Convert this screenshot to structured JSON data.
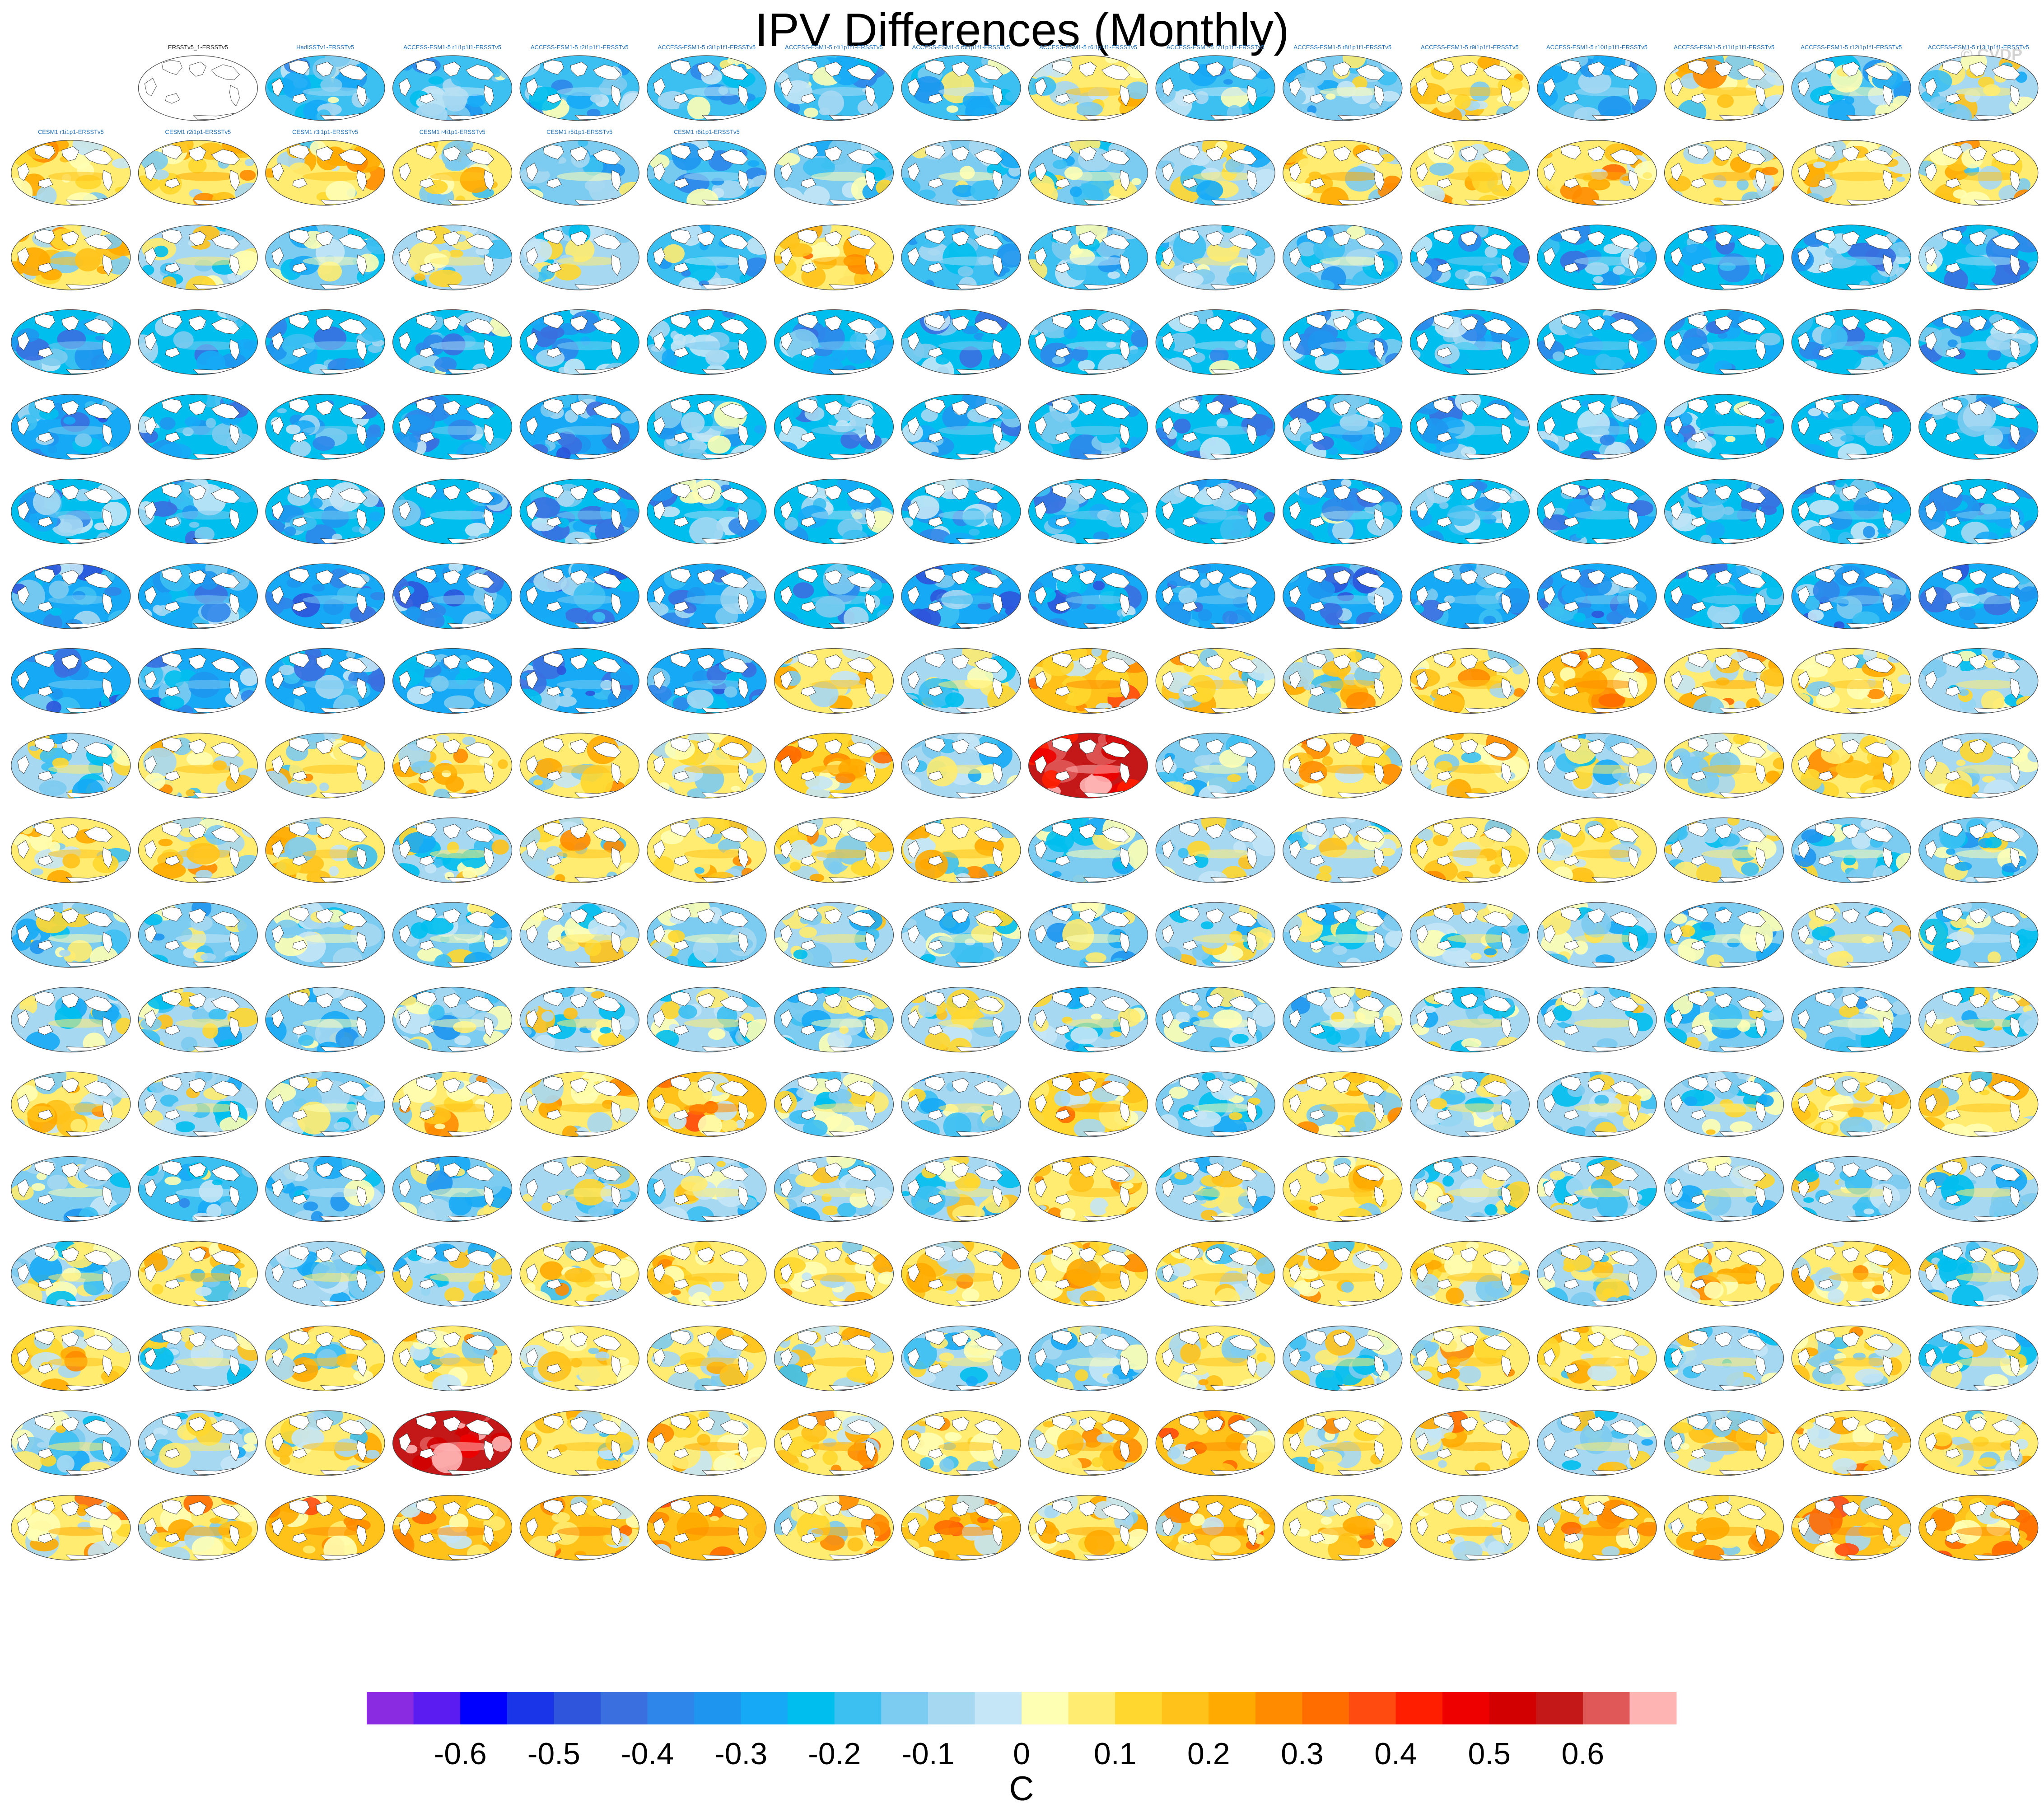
{
  "title": "IPV Differences (Monthly)",
  "watermark": "© CVDP",
  "chart_data": {
    "type": "heatmap",
    "title": "IPV Differences (Monthly)",
    "grid": {
      "rows": 18,
      "cols": 16
    },
    "first_row_offset": 1,
    "panel_labels": [
      "ERSSTv5_1-ERSSTv5",
      "HadISSTv1-ERSSTv5",
      "ACCESS-ESM1-5 r1i1p1f1-ERSSTv5",
      "ACCESS-ESM1-5 r2i1p1f1-ERSSTv5",
      "ACCESS-ESM1-5 r3i1p1f1-ERSSTv5",
      "ACCESS-ESM1-5 r4i1p1f1-ERSSTv5",
      "ACCESS-ESM1-5 r5i1p1f1-ERSSTv5",
      "ACCESS-ESM1-5 r6i1p1f1-ERSSTv5",
      "ACCESS-ESM1-5 r7i1p1f1-ERSSTv5",
      "ACCESS-ESM1-5 r8i1p1f1-ERSSTv5",
      "ACCESS-ESM1-5 r9i1p1f1-ERSSTv5",
      "ACCESS-ESM1-5 r10i1p1f1-ERSSTv5",
      "ACCESS-ESM1-5 r11i1p1f1-ERSSTv5",
      "ACCESS-ESM1-5 r12i1p1f1-ERSSTv5",
      "ACCESS-ESM1-5 r13i1p1f1-ERSSTv5",
      "CESM1 r1i1p1-ERSSTv5",
      "CESM1 r2i1p1-ERSSTv5",
      "CESM1 r3i1p1-ERSSTv5",
      "CESM1 r4i1p1-ERSSTv5",
      "CESM1 r5i1p1-ERSSTv5",
      "CESM1 r6i1p1-ERSSTv5"
    ],
    "label_groups": [
      {
        "from_row": 0,
        "from_col": 0,
        "color": "#222222"
      },
      {
        "from_row": 0,
        "from_col": 2,
        "color": "#1f6fb8"
      },
      {
        "from_row": 3,
        "from_col": 12,
        "color": "#7aa48a"
      },
      {
        "from_row": 7,
        "from_col": 6,
        "color": "#c0392b"
      },
      {
        "from_row": 10,
        "from_col": 5,
        "color": "#9a6fd6"
      },
      {
        "from_row": 16,
        "from_col": 2,
        "color": "#c9b27a"
      }
    ],
    "panel_mean": [
      [
        null,
        null,
        -0.18,
        -0.15,
        -0.18,
        -0.15,
        -0.18,
        -0.15,
        0.05,
        -0.15,
        -0.1,
        0.05,
        -0.18,
        0.05,
        -0.1,
        -0.05
      ],
      [
        0.05,
        0.1,
        0.05,
        0.05,
        -0.1,
        -0.18,
        -0.1,
        -0.1,
        -0.1,
        -0.05,
        0.1,
        0.05,
        0.1,
        0.1,
        0.05,
        0.05
      ],
      [
        0.05,
        -0.05,
        -0.1,
        -0.05,
        -0.05,
        -0.15,
        0.1,
        -0.18,
        -0.15,
        -0.05,
        -0.1,
        -0.22,
        -0.2,
        -0.22,
        -0.22,
        -0.2
      ],
      [
        -0.22,
        -0.22,
        -0.22,
        -0.2,
        -0.22,
        -0.22,
        -0.22,
        -0.22,
        -0.2,
        -0.2,
        -0.22,
        -0.2,
        -0.22,
        -0.22,
        -0.22,
        -0.2
      ],
      [
        -0.25,
        -0.22,
        -0.22,
        -0.22,
        -0.25,
        -0.2,
        -0.22,
        -0.22,
        -0.22,
        -0.22,
        -0.22,
        -0.22,
        -0.22,
        -0.2,
        -0.22,
        -0.22
      ],
      [
        -0.22,
        -0.22,
        -0.22,
        -0.2,
        -0.22,
        -0.2,
        -0.2,
        -0.2,
        -0.22,
        -0.22,
        -0.2,
        -0.22,
        -0.22,
        -0.22,
        -0.22,
        -0.22
      ],
      [
        -0.25,
        -0.25,
        -0.25,
        -0.25,
        -0.25,
        -0.25,
        -0.22,
        -0.28,
        -0.25,
        -0.25,
        -0.25,
        -0.25,
        -0.25,
        -0.22,
        -0.25,
        -0.25
      ],
      [
        -0.25,
        -0.25,
        -0.25,
        -0.25,
        -0.25,
        -0.25,
        0.05,
        -0.05,
        0.15,
        0.05,
        0.05,
        0.08,
        0.15,
        0.1,
        0.05,
        -0.05
      ],
      [
        -0.05,
        0.05,
        0.05,
        0.08,
        0.05,
        0.05,
        0.12,
        -0.05,
        0.55,
        -0.1,
        0.1,
        0.05,
        -0.05,
        0.05,
        0.05,
        -0.05
      ],
      [
        0.05,
        0.05,
        0.05,
        -0.05,
        0.05,
        0.05,
        0.05,
        0.05,
        -0.1,
        -0.05,
        -0.05,
        0.05,
        0.05,
        -0.05,
        -0.1,
        -0.1
      ],
      [
        -0.1,
        -0.12,
        -0.1,
        -0.1,
        -0.05,
        -0.1,
        -0.05,
        -0.1,
        -0.1,
        -0.05,
        -0.1,
        -0.05,
        -0.05,
        -0.1,
        -0.05,
        -0.12
      ],
      [
        -0.05,
        -0.05,
        -0.1,
        -0.1,
        -0.05,
        -0.05,
        -0.1,
        -0.05,
        -0.05,
        -0.1,
        -0.1,
        -0.05,
        -0.05,
        -0.1,
        -0.1,
        -0.05
      ],
      [
        0.05,
        -0.05,
        -0.1,
        0.05,
        0.05,
        0.15,
        -0.05,
        -0.05,
        0.12,
        -0.1,
        0.05,
        -0.05,
        -0.05,
        -0.05,
        0.05,
        0.05
      ],
      [
        -0.1,
        -0.15,
        -0.12,
        -0.1,
        -0.05,
        -0.05,
        -0.05,
        -0.05,
        0.05,
        -0.05,
        0.05,
        -0.05,
        -0.05,
        -0.05,
        -0.05,
        -0.05
      ],
      [
        -0.05,
        0.05,
        -0.05,
        -0.05,
        0.05,
        0.05,
        0.05,
        0.05,
        0.1,
        0.05,
        0.05,
        0.05,
        -0.05,
        0.05,
        0.05,
        -0.05
      ],
      [
        0.05,
        -0.05,
        0.05,
        0.05,
        0.05,
        0.05,
        0.05,
        -0.05,
        -0.1,
        0.05,
        -0.05,
        0.05,
        0.05,
        -0.05,
        0.05,
        -0.05
      ],
      [
        -0.05,
        -0.05,
        0.05,
        0.55,
        0.05,
        0.1,
        0.1,
        0.05,
        0.1,
        0.15,
        0.05,
        0.1,
        -0.05,
        0.1,
        0.1,
        0.05
      ],
      [
        0.1,
        0.1,
        0.15,
        0.15,
        0.15,
        0.15,
        0.1,
        0.15,
        0.1,
        0.15,
        0.1,
        0.1,
        0.15,
        0.1,
        0.15,
        0.15
      ]
    ],
    "colorbar": {
      "colors": [
        "#8a2be2",
        "#5a1cf0",
        "#0000ff",
        "#1a34e8",
        "#2e55dc",
        "#3a6fe0",
        "#2f86ea",
        "#1e96f0",
        "#16aaf6",
        "#00bfee",
        "#3cc0f2",
        "#7ccbf0",
        "#a6d8f2",
        "#c4e6f6",
        "#ffffb4",
        "#ffec70",
        "#ffd72e",
        "#ffc21a",
        "#ffaa00",
        "#ff8c00",
        "#ff6c00",
        "#ff4a10",
        "#ff1e00",
        "#ee0000",
        "#d20000",
        "#c41717",
        "#e05858",
        "#ffb4b4"
      ],
      "tick_labels": [
        "-0.6",
        "-0.5",
        "-0.4",
        "-0.3",
        "-0.2",
        "-0.1",
        "0",
        "0.1",
        "0.2",
        "0.3",
        "0.4",
        "0.5",
        "0.6"
      ],
      "tick_values": [
        -0.6,
        -0.5,
        -0.4,
        -0.3,
        -0.2,
        -0.1,
        0,
        0.1,
        0.2,
        0.3,
        0.4,
        0.5,
        0.6
      ],
      "unit_label": "C"
    }
  }
}
